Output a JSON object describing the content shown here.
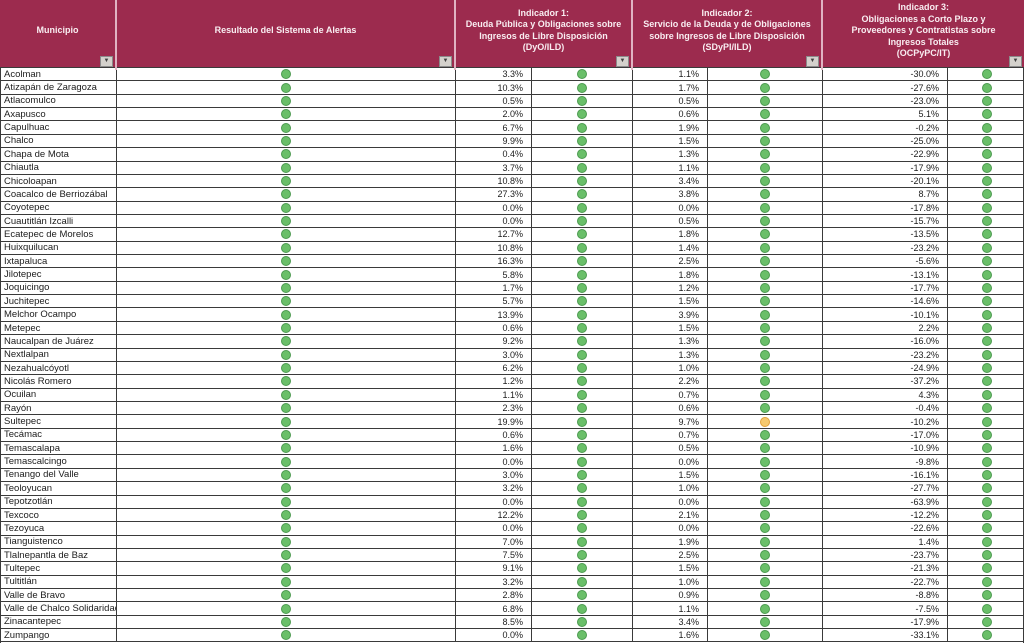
{
  "colors": {
    "header_bg": "#9c2b4e",
    "header_text": "#f9edf1",
    "header_divider": "#e0b3c2",
    "grid_line": "#3a3a3a",
    "dot_green": "#6abf69",
    "dot_green_border": "#4c9a50",
    "dot_yellow": "#f6c96f",
    "dot_yellow_border": "#e2a23c"
  },
  "icons": {
    "filter": "▼"
  },
  "table": {
    "columns": {
      "municipio": "Municipio",
      "resultado": "Resultado del Sistema de Alertas",
      "indicador1": "Indicador 1:\nDeuda Pública y Obligaciones sobre\nIngresos de Libre Disposición\n(DyO/ILD)",
      "indicador2": "Indicador 2:\nServicio de la Deuda y de Obligaciones\nsobre Ingresos de Libre Disposición\n(SDyPI/ILD)",
      "indicador3": "Indicador 3:\nObligaciones a Corto Plazo y\nProveedores y Contratistas sobre\nIngresos Totales\n(OCPyPC/IT)"
    },
    "rows": [
      {
        "municipio": "Acolman",
        "resultado_dot": "green",
        "ind1": "3.3%",
        "ind1_dot": "green",
        "ind2": "1.1%",
        "ind2_dot": "green",
        "ind3": "-30.0%",
        "ind3_dot": "green"
      },
      {
        "municipio": "Atizapán de Zaragoza",
        "resultado_dot": "green",
        "ind1": "10.3%",
        "ind1_dot": "green",
        "ind2": "1.7%",
        "ind2_dot": "green",
        "ind3": "-27.6%",
        "ind3_dot": "green"
      },
      {
        "municipio": "Atlacomulco",
        "resultado_dot": "green",
        "ind1": "0.5%",
        "ind1_dot": "green",
        "ind2": "0.5%",
        "ind2_dot": "green",
        "ind3": "-23.0%",
        "ind3_dot": "green"
      },
      {
        "municipio": "Axapusco",
        "resultado_dot": "green",
        "ind1": "2.0%",
        "ind1_dot": "green",
        "ind2": "0.6%",
        "ind2_dot": "green",
        "ind3": "5.1%",
        "ind3_dot": "green"
      },
      {
        "municipio": "Capulhuac",
        "resultado_dot": "green",
        "ind1": "6.7%",
        "ind1_dot": "green",
        "ind2": "1.9%",
        "ind2_dot": "green",
        "ind3": "-0.2%",
        "ind3_dot": "green"
      },
      {
        "municipio": "Chalco",
        "resultado_dot": "green",
        "ind1": "9.9%",
        "ind1_dot": "green",
        "ind2": "1.5%",
        "ind2_dot": "green",
        "ind3": "-25.0%",
        "ind3_dot": "green"
      },
      {
        "municipio": "Chapa de Mota",
        "resultado_dot": "green",
        "ind1": "0.4%",
        "ind1_dot": "green",
        "ind2": "1.3%",
        "ind2_dot": "green",
        "ind3": "-22.9%",
        "ind3_dot": "green"
      },
      {
        "municipio": "Chiautla",
        "resultado_dot": "green",
        "ind1": "3.7%",
        "ind1_dot": "green",
        "ind2": "1.1%",
        "ind2_dot": "green",
        "ind3": "-17.9%",
        "ind3_dot": "green"
      },
      {
        "municipio": "Chicoloapan",
        "resultado_dot": "green",
        "ind1": "10.8%",
        "ind1_dot": "green",
        "ind2": "3.4%",
        "ind2_dot": "green",
        "ind3": "-20.1%",
        "ind3_dot": "green"
      },
      {
        "municipio": "Coacalco de Berriozábal",
        "resultado_dot": "green",
        "ind1": "27.3%",
        "ind1_dot": "green",
        "ind2": "3.8%",
        "ind2_dot": "green",
        "ind3": "8.7%",
        "ind3_dot": "green"
      },
      {
        "municipio": "Coyotepec",
        "resultado_dot": "green",
        "ind1": "0.0%",
        "ind1_dot": "green",
        "ind2": "0.0%",
        "ind2_dot": "green",
        "ind3": "-17.8%",
        "ind3_dot": "green"
      },
      {
        "municipio": "Cuautitlán Izcalli",
        "resultado_dot": "green",
        "ind1": "0.0%",
        "ind1_dot": "green",
        "ind2": "0.5%",
        "ind2_dot": "green",
        "ind3": "-15.7%",
        "ind3_dot": "green"
      },
      {
        "municipio": "Ecatepec de Morelos",
        "resultado_dot": "green",
        "ind1": "12.7%",
        "ind1_dot": "green",
        "ind2": "1.8%",
        "ind2_dot": "green",
        "ind3": "-13.5%",
        "ind3_dot": "green"
      },
      {
        "municipio": "Huixquilucan",
        "resultado_dot": "green",
        "ind1": "10.8%",
        "ind1_dot": "green",
        "ind2": "1.4%",
        "ind2_dot": "green",
        "ind3": "-23.2%",
        "ind3_dot": "green"
      },
      {
        "municipio": "Ixtapaluca",
        "resultado_dot": "green",
        "ind1": "16.3%",
        "ind1_dot": "green",
        "ind2": "2.5%",
        "ind2_dot": "green",
        "ind3": "-5.6%",
        "ind3_dot": "green"
      },
      {
        "municipio": "Jilotepec",
        "resultado_dot": "green",
        "ind1": "5.8%",
        "ind1_dot": "green",
        "ind2": "1.8%",
        "ind2_dot": "green",
        "ind3": "-13.1%",
        "ind3_dot": "green"
      },
      {
        "municipio": "Joquicingo",
        "resultado_dot": "green",
        "ind1": "1.7%",
        "ind1_dot": "green",
        "ind2": "1.2%",
        "ind2_dot": "green",
        "ind3": "-17.7%",
        "ind3_dot": "green"
      },
      {
        "municipio": "Juchitepec",
        "resultado_dot": "green",
        "ind1": "5.7%",
        "ind1_dot": "green",
        "ind2": "1.5%",
        "ind2_dot": "green",
        "ind3": "-14.6%",
        "ind3_dot": "green"
      },
      {
        "municipio": "Melchor Ocampo",
        "resultado_dot": "green",
        "ind1": "13.9%",
        "ind1_dot": "green",
        "ind2": "3.9%",
        "ind2_dot": "green",
        "ind3": "-10.1%",
        "ind3_dot": "green"
      },
      {
        "municipio": "Metepec",
        "resultado_dot": "green",
        "ind1": "0.6%",
        "ind1_dot": "green",
        "ind2": "1.5%",
        "ind2_dot": "green",
        "ind3": "2.2%",
        "ind3_dot": "green"
      },
      {
        "municipio": "Naucalpan de Juárez",
        "resultado_dot": "green",
        "ind1": "9.2%",
        "ind1_dot": "green",
        "ind2": "1.3%",
        "ind2_dot": "green",
        "ind3": "-16.0%",
        "ind3_dot": "green"
      },
      {
        "municipio": "Nextlalpan",
        "resultado_dot": "green",
        "ind1": "3.0%",
        "ind1_dot": "green",
        "ind2": "1.3%",
        "ind2_dot": "green",
        "ind3": "-23.2%",
        "ind3_dot": "green"
      },
      {
        "municipio": "Nezahualcóyotl",
        "resultado_dot": "green",
        "ind1": "6.2%",
        "ind1_dot": "green",
        "ind2": "1.0%",
        "ind2_dot": "green",
        "ind3": "-24.9%",
        "ind3_dot": "green"
      },
      {
        "municipio": "Nicolás Romero",
        "resultado_dot": "green",
        "ind1": "1.2%",
        "ind1_dot": "green",
        "ind2": "2.2%",
        "ind2_dot": "green",
        "ind3": "-37.2%",
        "ind3_dot": "green"
      },
      {
        "municipio": "Ocuilan",
        "resultado_dot": "green",
        "ind1": "1.1%",
        "ind1_dot": "green",
        "ind2": "0.7%",
        "ind2_dot": "green",
        "ind3": "4.3%",
        "ind3_dot": "green"
      },
      {
        "municipio": "Rayón",
        "resultado_dot": "green",
        "ind1": "2.3%",
        "ind1_dot": "green",
        "ind2": "0.6%",
        "ind2_dot": "green",
        "ind3": "-0.4%",
        "ind3_dot": "green"
      },
      {
        "municipio": "Sultepec",
        "resultado_dot": "green",
        "ind1": "19.9%",
        "ind1_dot": "green",
        "ind2": "9.7%",
        "ind2_dot": "yellow",
        "ind3": "-10.2%",
        "ind3_dot": "green"
      },
      {
        "municipio": "Tecámac",
        "resultado_dot": "green",
        "ind1": "0.6%",
        "ind1_dot": "green",
        "ind2": "0.7%",
        "ind2_dot": "green",
        "ind3": "-17.0%",
        "ind3_dot": "green"
      },
      {
        "municipio": "Temascalapa",
        "resultado_dot": "green",
        "ind1": "1.6%",
        "ind1_dot": "green",
        "ind2": "0.5%",
        "ind2_dot": "green",
        "ind3": "-10.9%",
        "ind3_dot": "green"
      },
      {
        "municipio": "Temascalcingo",
        "resultado_dot": "green",
        "ind1": "0.0%",
        "ind1_dot": "green",
        "ind2": "0.0%",
        "ind2_dot": "green",
        "ind3": "-9.8%",
        "ind3_dot": "green"
      },
      {
        "municipio": "Tenango del Valle",
        "resultado_dot": "green",
        "ind1": "3.0%",
        "ind1_dot": "green",
        "ind2": "1.5%",
        "ind2_dot": "green",
        "ind3": "-16.1%",
        "ind3_dot": "green"
      },
      {
        "municipio": "Teoloyucan",
        "resultado_dot": "green",
        "ind1": "3.2%",
        "ind1_dot": "green",
        "ind2": "1.0%",
        "ind2_dot": "green",
        "ind3": "-27.7%",
        "ind3_dot": "green"
      },
      {
        "municipio": "Tepotzotlán",
        "resultado_dot": "green",
        "ind1": "0.0%",
        "ind1_dot": "green",
        "ind2": "0.0%",
        "ind2_dot": "green",
        "ind3": "-63.9%",
        "ind3_dot": "green"
      },
      {
        "municipio": "Texcoco",
        "resultado_dot": "green",
        "ind1": "12.2%",
        "ind1_dot": "green",
        "ind2": "2.1%",
        "ind2_dot": "green",
        "ind3": "-12.2%",
        "ind3_dot": "green"
      },
      {
        "municipio": "Tezoyuca",
        "resultado_dot": "green",
        "ind1": "0.0%",
        "ind1_dot": "green",
        "ind2": "0.0%",
        "ind2_dot": "green",
        "ind3": "-22.6%",
        "ind3_dot": "green"
      },
      {
        "municipio": "Tianguistenco",
        "resultado_dot": "green",
        "ind1": "7.0%",
        "ind1_dot": "green",
        "ind2": "1.9%",
        "ind2_dot": "green",
        "ind3": "1.4%",
        "ind3_dot": "green"
      },
      {
        "municipio": "Tlalnepantla de Baz",
        "resultado_dot": "green",
        "ind1": "7.5%",
        "ind1_dot": "green",
        "ind2": "2.5%",
        "ind2_dot": "green",
        "ind3": "-23.7%",
        "ind3_dot": "green"
      },
      {
        "municipio": "Tultepec",
        "resultado_dot": "green",
        "ind1": "9.1%",
        "ind1_dot": "green",
        "ind2": "1.5%",
        "ind2_dot": "green",
        "ind3": "-21.3%",
        "ind3_dot": "green"
      },
      {
        "municipio": "Tultitlán",
        "resultado_dot": "green",
        "ind1": "3.2%",
        "ind1_dot": "green",
        "ind2": "1.0%",
        "ind2_dot": "green",
        "ind3": "-22.7%",
        "ind3_dot": "green"
      },
      {
        "municipio": "Valle de Bravo",
        "resultado_dot": "green",
        "ind1": "2.8%",
        "ind1_dot": "green",
        "ind2": "0.9%",
        "ind2_dot": "green",
        "ind3": "-8.8%",
        "ind3_dot": "green"
      },
      {
        "municipio": "Valle de Chalco Solidaridad",
        "resultado_dot": "green",
        "ind1": "6.8%",
        "ind1_dot": "green",
        "ind2": "1.1%",
        "ind2_dot": "green",
        "ind3": "-7.5%",
        "ind3_dot": "green"
      },
      {
        "municipio": "Zinacantepec",
        "resultado_dot": "green",
        "ind1": "8.5%",
        "ind1_dot": "green",
        "ind2": "3.4%",
        "ind2_dot": "green",
        "ind3": "-17.9%",
        "ind3_dot": "green"
      },
      {
        "municipio": "Zumpango",
        "resultado_dot": "green",
        "ind1": "0.0%",
        "ind1_dot": "green",
        "ind2": "1.6%",
        "ind2_dot": "green",
        "ind3": "-33.1%",
        "ind3_dot": "green"
      }
    ]
  }
}
